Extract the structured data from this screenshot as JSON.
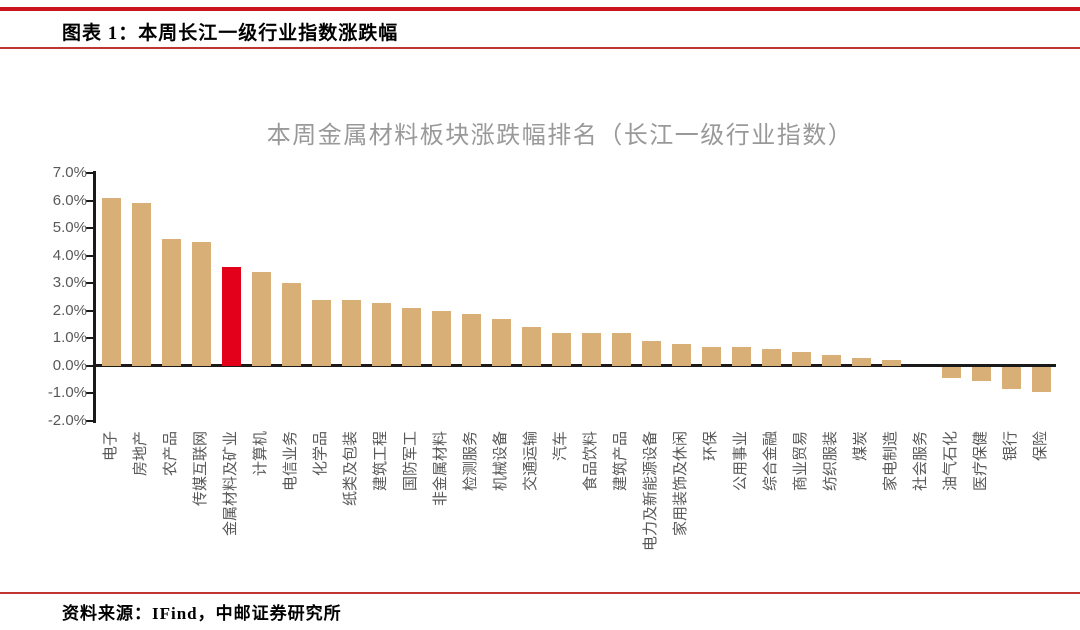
{
  "header": {
    "title": "图表 1：本周长江一级行业指数涨跌幅"
  },
  "footer": {
    "source": "资料来源：IFind，中邮证券研究所"
  },
  "chart_data": {
    "type": "bar",
    "title": "本周金属材料板块涨跌幅排名（长江一级行业指数）",
    "categories": [
      "电子",
      "房地产",
      "农产品",
      "传媒互联网",
      "金属材料及矿业",
      "计算机",
      "电信业务",
      "化学品",
      "纸类及包装",
      "建筑工程",
      "国防军工",
      "非金属材料",
      "检测服务",
      "机械设备",
      "交通运输",
      "汽车",
      "食品饮料",
      "建筑产品",
      "电力及新能源设备",
      "家用装饰及休闲",
      "环保",
      "公用事业",
      "综合金融",
      "商业贸易",
      "纺织服装",
      "煤炭",
      "家电制造",
      "社会服务",
      "油气石化",
      "医疗保健",
      "银行",
      "保险"
    ],
    "values": [
      6.1,
      5.9,
      4.6,
      4.5,
      3.6,
      3.4,
      3.0,
      2.4,
      2.4,
      2.3,
      2.1,
      2.0,
      1.9,
      1.7,
      1.4,
      1.2,
      1.2,
      1.2,
      0.9,
      0.8,
      0.7,
      0.7,
      0.6,
      0.5,
      0.4,
      0.3,
      0.2,
      0.0,
      -0.4,
      -0.5,
      -0.8,
      -0.9
    ],
    "unit": "%",
    "highlight_index": 4,
    "highlight_category": "金属材料及矿业",
    "bar_color": "#d8b077",
    "highlight_color": "#e2001a",
    "axis_color": "#1a1a1a",
    "label_color": "#595959",
    "title_color": "#999999",
    "ylim": [
      -2.0,
      7.0
    ],
    "y_ticks": [
      "7.0%",
      "6.0%",
      "5.0%",
      "4.0%",
      "3.0%",
      "2.0%",
      "1.0%",
      "0.0%",
      "-1.0%",
      "-2.0%"
    ],
    "grid": false,
    "legend": null
  }
}
